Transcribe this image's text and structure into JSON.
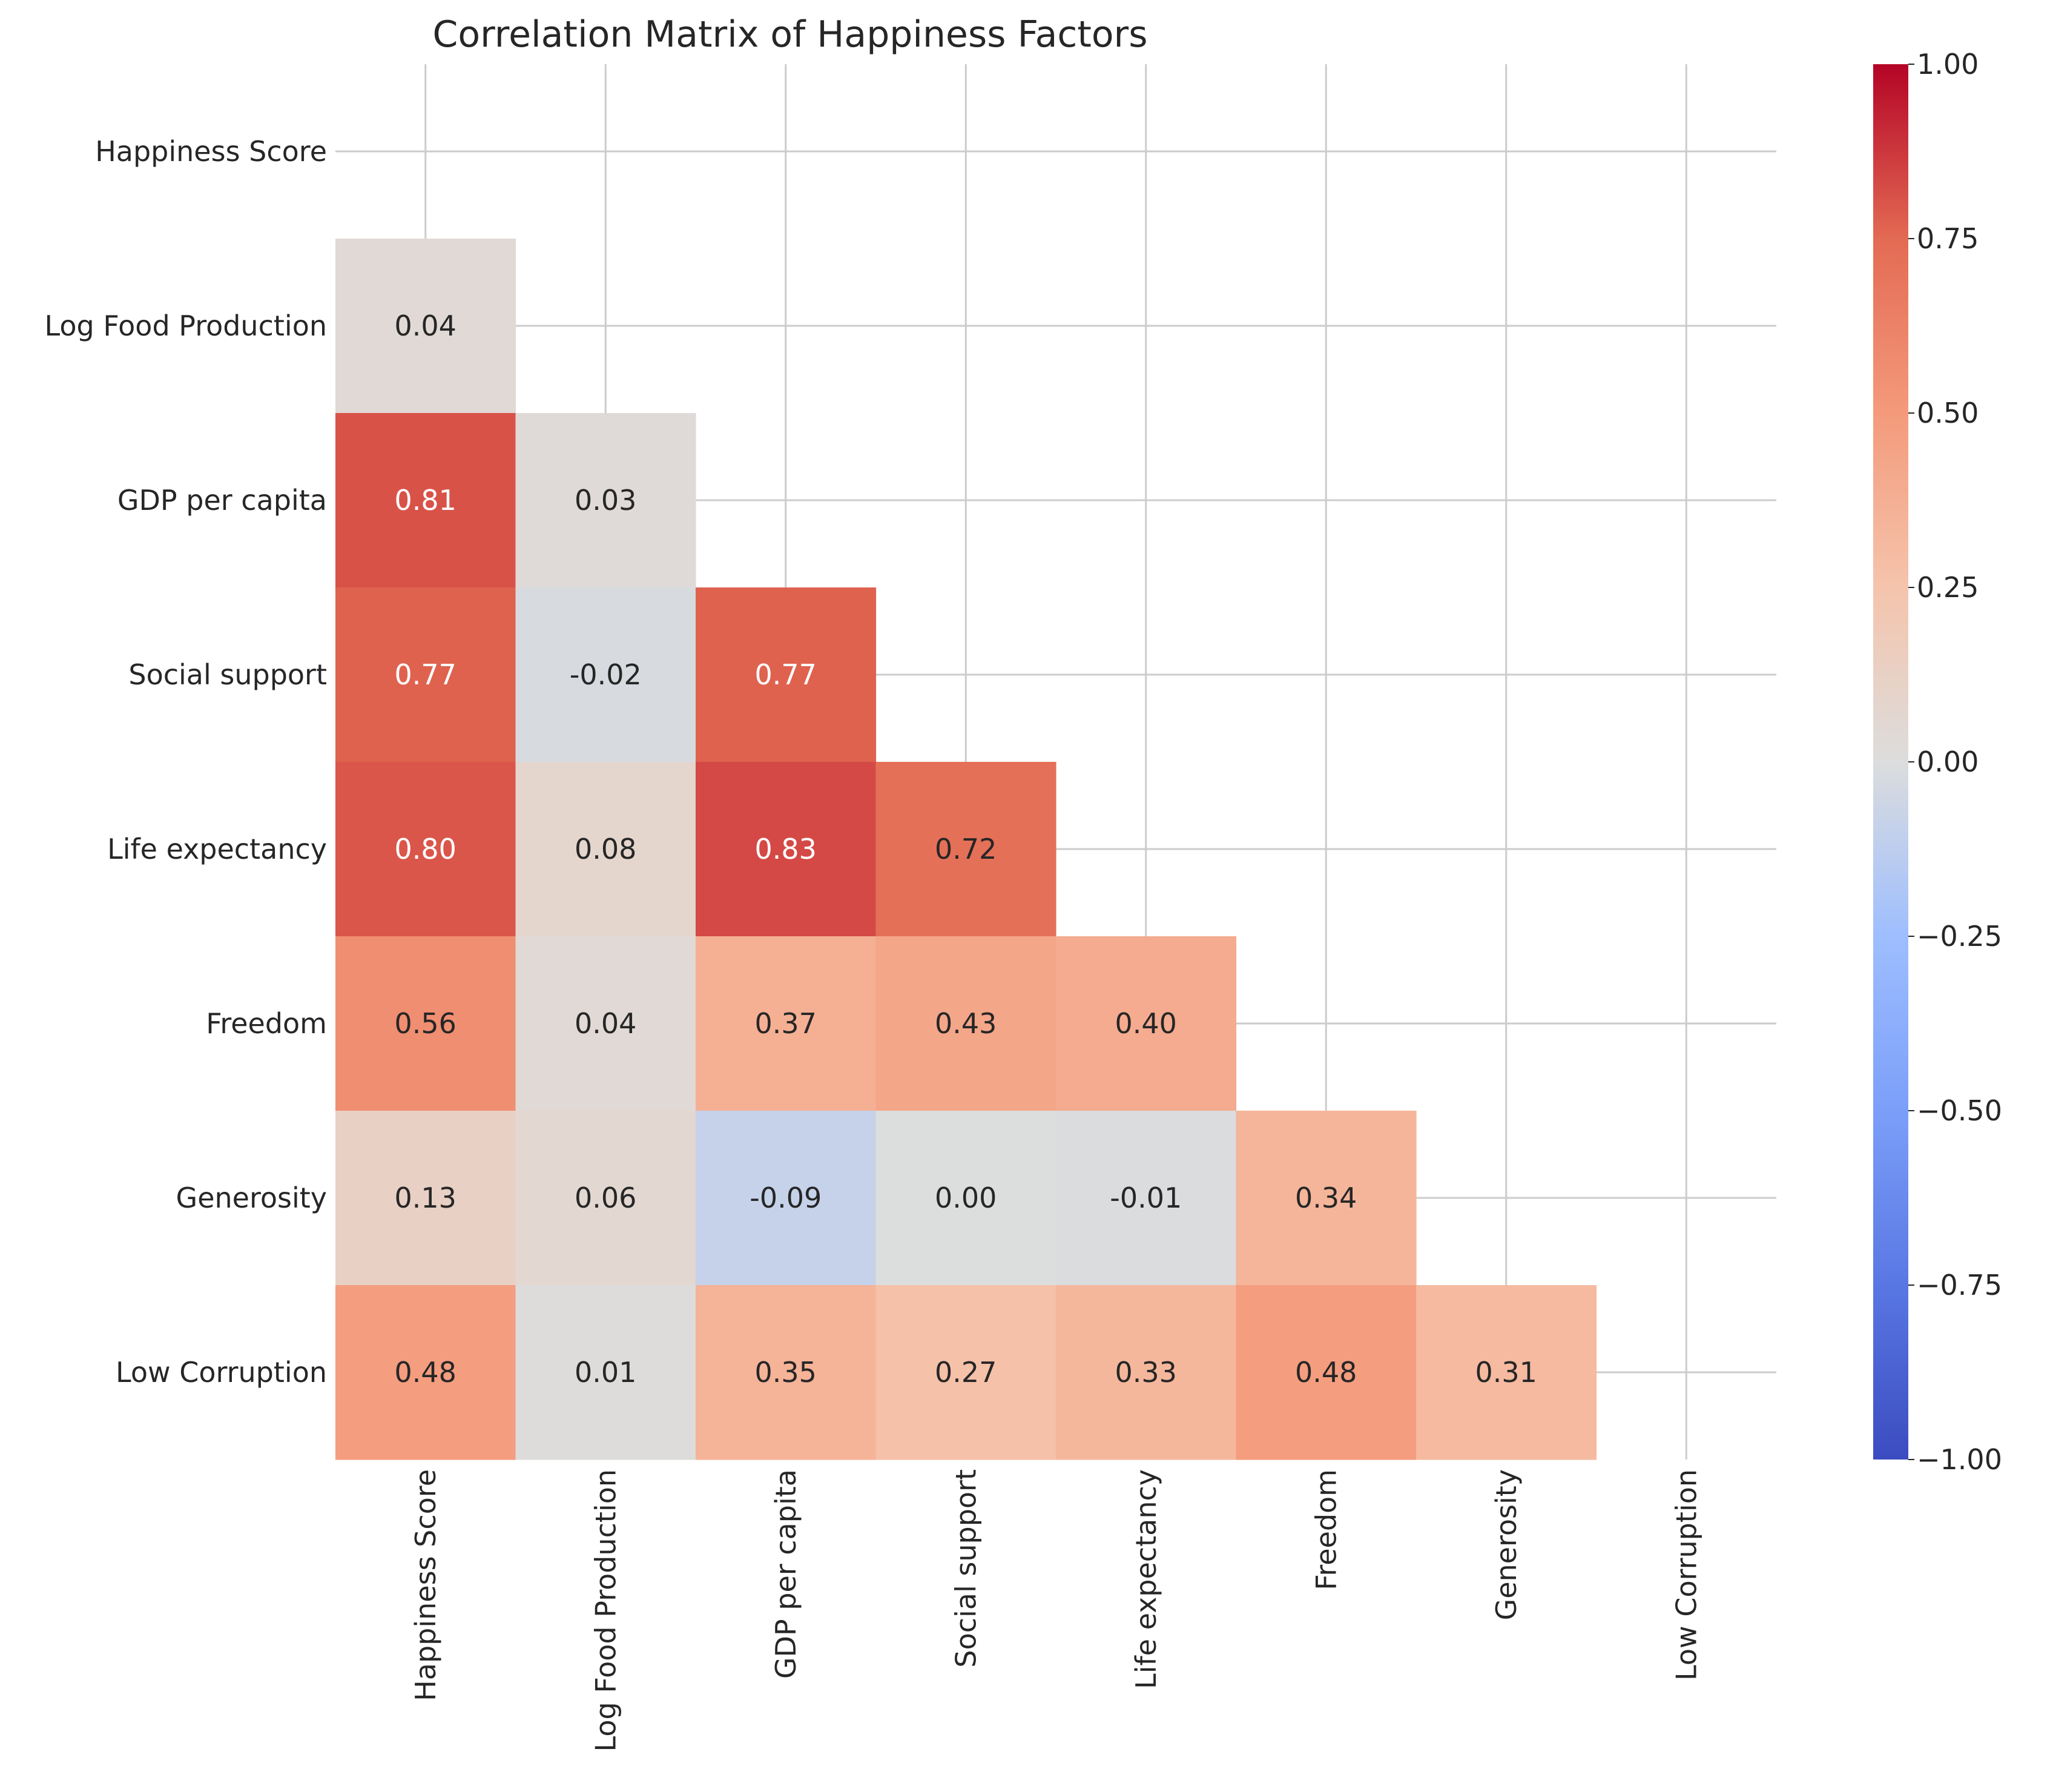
{
  "chart_data": {
    "type": "heatmap",
    "title": "Correlation Matrix of Happiness Factors",
    "variables": [
      "Happiness Score",
      "Log Food Production",
      "GDP per capita",
      "Social support",
      "Life expectancy",
      "Freedom",
      "Generosity",
      "Low Corruption"
    ],
    "mask": "upper-triangle-including-diagonal",
    "values": [
      [
        null,
        null,
        null,
        null,
        null,
        null,
        null,
        null
      ],
      [
        0.04,
        null,
        null,
        null,
        null,
        null,
        null,
        null
      ],
      [
        0.81,
        0.03,
        null,
        null,
        null,
        null,
        null,
        null
      ],
      [
        0.77,
        -0.02,
        0.77,
        null,
        null,
        null,
        null,
        null
      ],
      [
        0.8,
        0.08,
        0.83,
        0.72,
        null,
        null,
        null,
        null
      ],
      [
        0.56,
        0.04,
        0.37,
        0.43,
        0.4,
        null,
        null,
        null
      ],
      [
        0.13,
        0.06,
        -0.09,
        0.0,
        -0.01,
        0.34,
        null,
        null
      ],
      [
        0.48,
        0.01,
        0.35,
        0.27,
        0.33,
        0.48,
        0.31,
        null
      ]
    ],
    "value_labels": [
      [
        "",
        "",
        "",
        "",
        "",
        "",
        "",
        ""
      ],
      [
        "0.04",
        "",
        "",
        "",
        "",
        "",
        "",
        ""
      ],
      [
        "0.81",
        "0.03",
        "",
        "",
        "",
        "",
        "",
        ""
      ],
      [
        "0.77",
        "-0.02",
        "0.77",
        "",
        "",
        "",
        "",
        ""
      ],
      [
        "0.80",
        "0.08",
        "0.83",
        "0.72",
        "",
        "",
        "",
        ""
      ],
      [
        "0.56",
        "0.04",
        "0.37",
        "0.43",
        "0.40",
        "",
        "",
        ""
      ],
      [
        "0.13",
        "0.06",
        "-0.09",
        "0.00",
        "-0.01",
        "0.34",
        "",
        ""
      ],
      [
        "0.48",
        "0.01",
        "0.35",
        "0.27",
        "0.33",
        "0.48",
        "0.31",
        ""
      ]
    ],
    "colormap": "coolwarm",
    "vmin": -1.0,
    "vmax": 1.0,
    "colorbar_ticks": [
      1.0,
      0.75,
      0.5,
      0.25,
      0.0,
      -0.25,
      -0.5,
      -0.75,
      -1.0
    ],
    "colorbar_tick_labels": [
      "1.00",
      "0.75",
      "0.50",
      "0.25",
      "0.00",
      "−0.25",
      "−0.50",
      "−0.75",
      "−1.00"
    ],
    "grid": true
  }
}
